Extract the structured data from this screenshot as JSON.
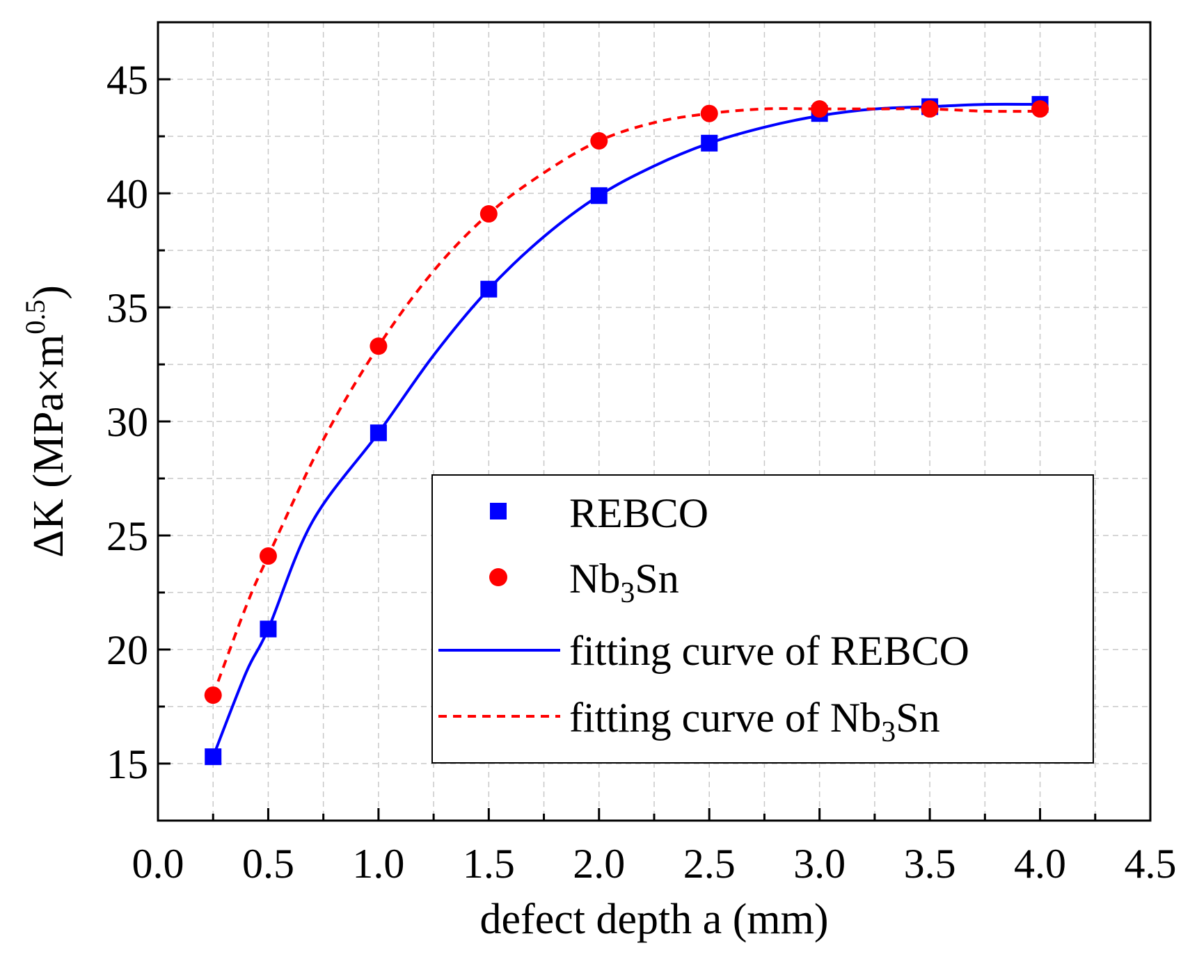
{
  "chart_data": {
    "type": "scatter",
    "title": "",
    "xlabel": "defect depth a (mm)",
    "ylabel": "ΔK (MPa×m0.5)",
    "ylabel_parts": {
      "main": "ΔK (MPa×m",
      "sup": "0.5",
      "close": ")"
    },
    "xlim": [
      0,
      4.5
    ],
    "ylim": [
      12.5,
      47.5
    ],
    "xticks": [
      0.0,
      0.5,
      1.0,
      1.5,
      2.0,
      2.5,
      3.0,
      3.5,
      4.0,
      4.5
    ],
    "xtick_labels": [
      "0.0",
      "0.5",
      "1.0",
      "1.5",
      "2.0",
      "2.5",
      "3.0",
      "3.5",
      "4.0",
      "4.5"
    ],
    "yticks": [
      15,
      20,
      25,
      30,
      35,
      40,
      45
    ],
    "ytick_labels": [
      "15",
      "20",
      "25",
      "30",
      "35",
      "40",
      "45"
    ],
    "grid": true,
    "legend_position": "center-right",
    "x": [
      0.25,
      0.5,
      1.0,
      1.5,
      2.0,
      2.5,
      3.0,
      3.5,
      4.0
    ],
    "series": [
      {
        "name": "REBCO",
        "marker": "square",
        "color": "#0000ff",
        "values": [
          15.3,
          20.9,
          29.5,
          35.8,
          39.9,
          42.2,
          43.5,
          43.8,
          43.9
        ]
      },
      {
        "name": "Nb3Sn",
        "name_parts": {
          "pre": "Nb",
          "sub": "3",
          "post": "Sn"
        },
        "marker": "circle",
        "color": "#ff0000",
        "values": [
          18.0,
          24.1,
          33.3,
          39.1,
          42.3,
          43.5,
          43.7,
          43.7,
          43.7
        ]
      }
    ],
    "fits": [
      {
        "name": "fitting curve of  REBCO",
        "label_text": "fitting curve of  REBCO",
        "style": "solid",
        "color": "#0000ff",
        "x": [
          0.25,
          0.4,
          0.5,
          0.7,
          1.0,
          1.25,
          1.5,
          1.75,
          2.0,
          2.25,
          2.5,
          2.75,
          3.0,
          3.25,
          3.5,
          3.75,
          4.0
        ],
        "y": [
          15.3,
          19.0,
          20.9,
          25.6,
          29.5,
          32.9,
          35.8,
          38.1,
          39.9,
          41.2,
          42.2,
          42.9,
          43.4,
          43.7,
          43.8,
          43.9,
          43.9
        ]
      },
      {
        "name": "fitting curve of  Nb3Sn",
        "label_pre": "fitting curve of  Nb",
        "label_sub": "3",
        "label_post": "Sn",
        "style": "dashed",
        "color": "#ff0000",
        "x": [
          0.25,
          0.4,
          0.5,
          0.75,
          1.0,
          1.25,
          1.5,
          1.75,
          2.0,
          2.25,
          2.5,
          2.75,
          3.0,
          3.25,
          3.5,
          3.75,
          4.0
        ],
        "y": [
          18.0,
          21.9,
          24.1,
          29.2,
          33.3,
          36.6,
          39.1,
          40.9,
          42.3,
          43.1,
          43.5,
          43.7,
          43.7,
          43.7,
          43.7,
          43.6,
          43.6
        ]
      }
    ]
  }
}
